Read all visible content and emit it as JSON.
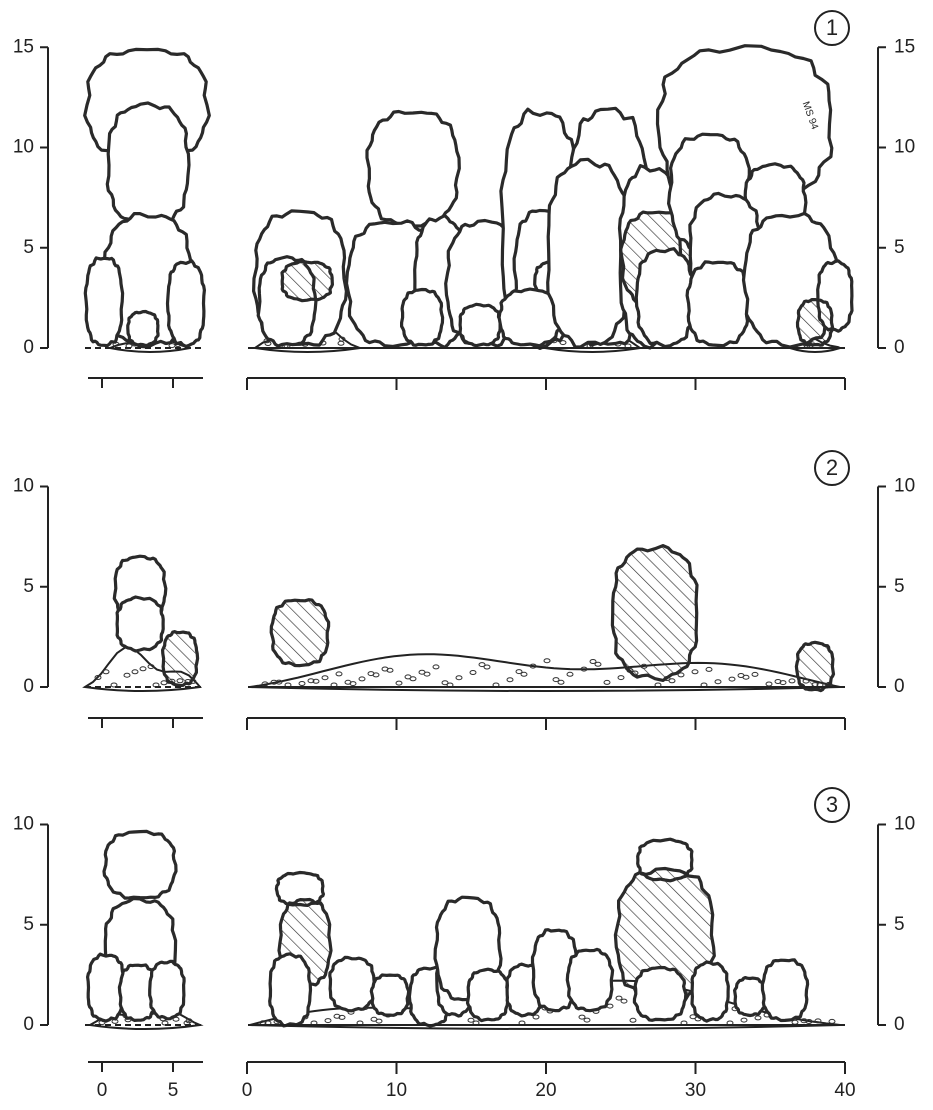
{
  "panels": [
    {
      "label": "1",
      "yticks": [
        0,
        5,
        10,
        15
      ]
    },
    {
      "label": "2",
      "yticks": [
        0,
        5,
        10
      ]
    },
    {
      "label": "3",
      "yticks": [
        0,
        5,
        10
      ]
    }
  ],
  "x_ticks_inset": [
    0,
    5
  ],
  "x_ticks_main": [
    0,
    10,
    20,
    30,
    40
  ],
  "signature": "MS 94"
}
